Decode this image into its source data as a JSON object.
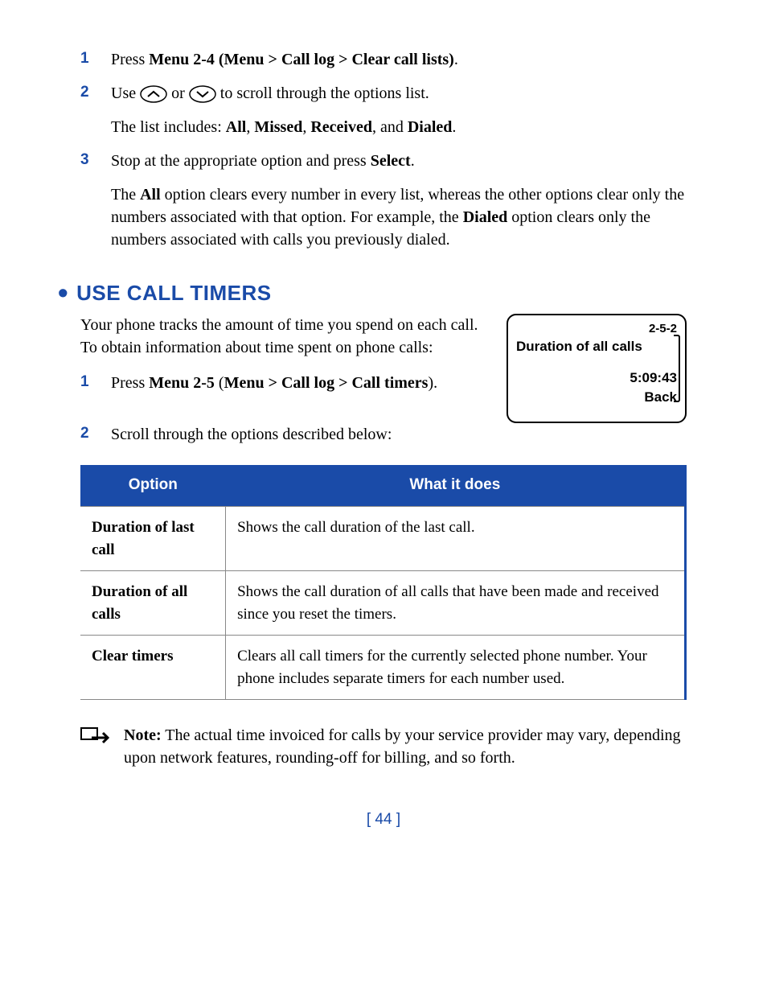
{
  "colors": {
    "accent": "#1a4ba8",
    "text": "#000000",
    "bg": "#ffffff",
    "cell_border": "#888888"
  },
  "steps_a": [
    {
      "num": "1",
      "parts": [
        {
          "t": "Press "
        },
        {
          "t": "Menu 2-4 (Menu > Call log > Clear call lists)",
          "b": true
        },
        {
          "t": "."
        }
      ]
    },
    {
      "num": "2",
      "parts": [
        {
          "t": "Use "
        },
        {
          "icon": "up"
        },
        {
          "t": " or "
        },
        {
          "icon": "down"
        },
        {
          "t": " to scroll through the options list."
        }
      ],
      "sub": [
        {
          "t": "The list includes: "
        },
        {
          "t": "All",
          "b": true
        },
        {
          "t": ", "
        },
        {
          "t": "Missed",
          "b": true
        },
        {
          "t": ", "
        },
        {
          "t": "Received",
          "b": true
        },
        {
          "t": ", and "
        },
        {
          "t": "Dialed",
          "b": true
        },
        {
          "t": "."
        }
      ]
    },
    {
      "num": "3",
      "parts": [
        {
          "t": "Stop at the appropriate option and press "
        },
        {
          "t": "Select",
          "b": true
        },
        {
          "t": "."
        }
      ],
      "sub": [
        {
          "t": "The "
        },
        {
          "t": "All",
          "b": true
        },
        {
          "t": " option clears every number in every list, whereas the other options clear only the numbers associated with that option. For example, the "
        },
        {
          "t": "Dialed",
          "b": true
        },
        {
          "t": " option clears only the numbers associated with calls you previously dialed."
        }
      ]
    }
  ],
  "heading": "USE CALL TIMERS",
  "intro": "Your phone tracks the amount of time you spend on each call. To obtain information about time spent on phone calls:",
  "phone_screen": {
    "menu_path": "2-5-2",
    "title": "Duration of all calls",
    "time": "5:09:43",
    "back": "Back"
  },
  "steps_b": [
    {
      "num": "1",
      "parts": [
        {
          "t": "Press "
        },
        {
          "t": "Menu 2-5",
          "b": true
        },
        {
          "t": " ("
        },
        {
          "t": "Menu > Call log > Call timers",
          "b": true
        },
        {
          "t": ")."
        }
      ]
    },
    {
      "num": "2",
      "parts": [
        {
          "t": "Scroll through the options described below:"
        }
      ]
    }
  ],
  "table": {
    "headers": [
      "Option",
      "What it does"
    ],
    "rows": [
      [
        "Duration of last call",
        "Shows the call duration of the last call."
      ],
      [
        "Duration of all calls",
        "Shows the call duration of all calls that have been made and received since you reset the timers."
      ],
      [
        "Clear timers",
        "Clears all call timers for the currently selected phone number. Your phone includes separate timers for each number used."
      ]
    ]
  },
  "note": {
    "label": "Note:",
    "text": "  The actual time invoiced for calls by your service provider may vary, depending upon network features, rounding-off for billing, and so forth."
  },
  "page": "[ 44 ]"
}
